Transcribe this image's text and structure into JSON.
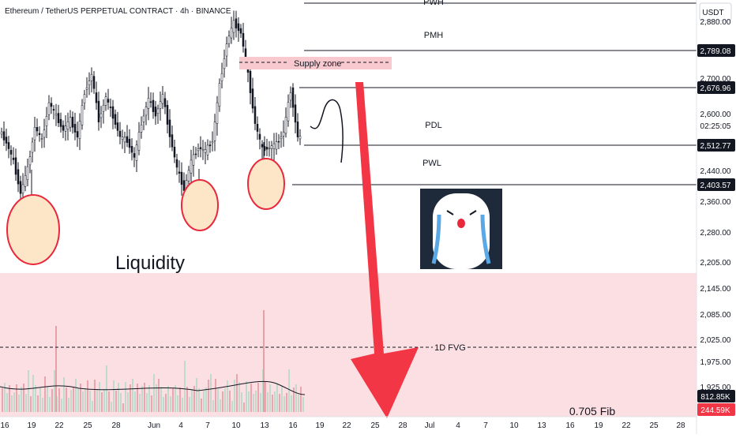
{
  "chart_data": {
    "type": "candlestick",
    "title": "Ethereum / TetherUS PERPETUAL CONTRACT · 4h · BINANCE",
    "currency": "USDT",
    "countdown": "02:25:05",
    "y_ticks": [
      "2,880.00",
      "2,700.00",
      "2,600.00",
      "2,520.00",
      "2,440.00",
      "2,360.00",
      "2,280.00",
      "2,205.00",
      "2,145.00",
      "2,085.00",
      "2,025.00",
      "1,975.00",
      "1,925.00"
    ],
    "x_ticks": [
      "16",
      "19",
      "22",
      "25",
      "28",
      "Jun",
      "4",
      "7",
      "10",
      "13",
      "16",
      "19",
      "22",
      "25",
      "28",
      "Jul",
      "4",
      "7",
      "10",
      "13",
      "16",
      "19",
      "22",
      "25",
      "28"
    ],
    "levels": [
      {
        "label": "PWH",
        "price": "2,880.00"
      },
      {
        "label": "PMH",
        "price": "2,789.08"
      },
      {
        "label": "",
        "price": "2,676.96"
      },
      {
        "label": "PDL",
        "price": "2,512.77"
      },
      {
        "label": "PWL",
        "price": "2,403.57"
      }
    ],
    "zones": {
      "supply": "Supply zone",
      "liquidity": "Liquidity",
      "fvg": "1D FVG",
      "fib": "0.705 Fib"
    },
    "volume_badges": [
      "812.85K",
      "244.59K"
    ],
    "price_path": [
      2560,
      2525,
      2470,
      2380,
      2450,
      2570,
      2530,
      2640,
      2600,
      2560,
      2590,
      2540,
      2670,
      2720,
      2590,
      2655,
      2600,
      2540,
      2530,
      2480,
      2580,
      2650,
      2605,
      2660,
      2545,
      2450,
      2390,
      2470,
      2510,
      2500,
      2530,
      2690,
      2810,
      2870,
      2840,
      2720,
      2580,
      2505,
      2510,
      2520,
      2555,
      2675,
      2540
    ]
  },
  "colors": {
    "up": "#089981",
    "down": "#f23645",
    "arrow": "#f23645",
    "supply_zone": "#f8c9cf",
    "liquidity_zone": "#fcdfe2",
    "liquidity_circle_fill": "#fde6c8",
    "liquidity_circle_stroke": "#e8283b",
    "badge_dark": "#131722",
    "badge_red": "#f23645"
  }
}
